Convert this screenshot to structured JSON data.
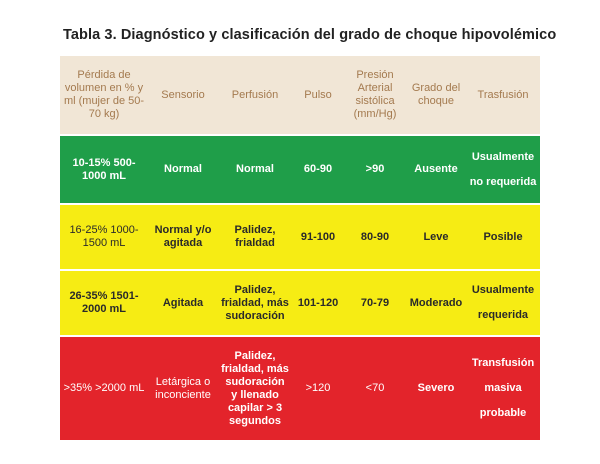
{
  "title": "Tabla 3. Diagnóstico y clasificación del grado de choque hipovolémico",
  "headers": [
    "Pérdida de volumen en % y ml (mujer de 50-70 kg)",
    "Sensorio",
    "Perfusión",
    "Pulso",
    "Presión Arterial sistólica (mm/Hg)",
    "Grado del choque",
    "Trasfusión"
  ],
  "rows": [
    {
      "color": "#1f9e49",
      "cells": [
        "10-15% 500-1000 mL",
        "Normal",
        "Normal",
        "60-90",
        ">90",
        "Ausente",
        "Usualmente no requerida"
      ]
    },
    {
      "color": "#f6ec14",
      "cells": [
        "16-25% 1000-1500 mL",
        "Normal y/o agitada",
        "Palidez, frialdad",
        "91-100",
        "80-90",
        "Leve",
        "Posible"
      ]
    },
    {
      "color": "#f6ec14",
      "cells": [
        "26-35% 1501-2000 mL",
        "Agitada",
        "Palidez, frialdad, más sudoración",
        "101-120",
        "70-79",
        "Moderado",
        "Usualmente requerida"
      ]
    },
    {
      "color": "#e3242b",
      "cells": [
        ">35% >2000 mL",
        "Letárgica o inconciente",
        "Palidez, frialdad, más sudoración y llenado capilar > 3 segundos",
        ">120",
        "<70",
        "Severo",
        "Transfusión masiva probable"
      ]
    }
  ]
}
